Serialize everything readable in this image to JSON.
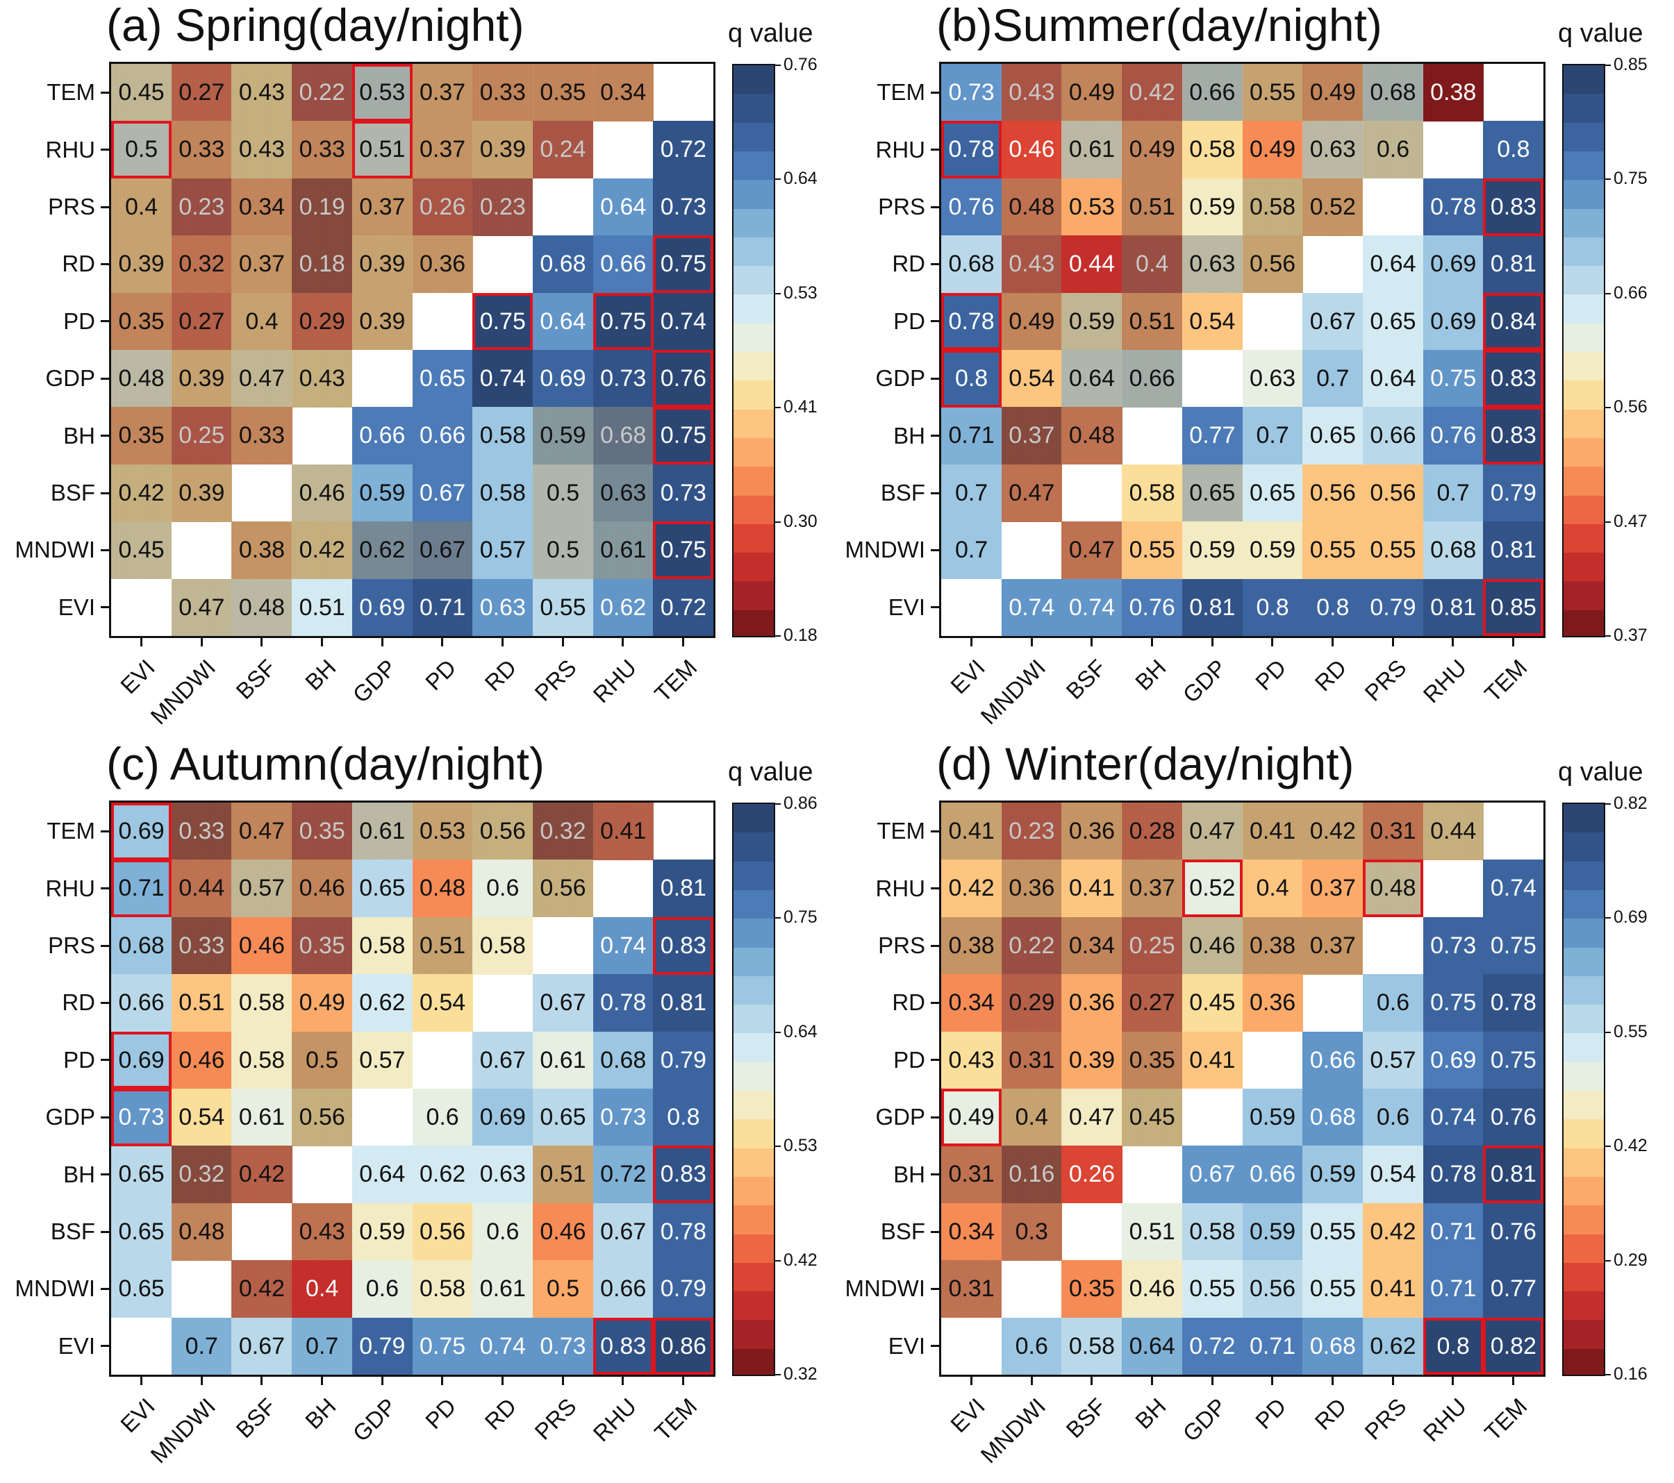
{
  "chart_data": [
    {
      "type": "heatmap",
      "title": "(a) Spring(day/night)",
      "colorbar_label": "q value",
      "rows": [
        "TEM",
        "RHU",
        "PRS",
        "RD",
        "PD",
        "GDP",
        "BH",
        "BSF",
        "MNDWI",
        "EVI"
      ],
      "columns": [
        "EVI",
        "MNDWI",
        "BSF",
        "BH",
        "GDP",
        "PD",
        "RD",
        "PRS",
        "RHU",
        "TEM"
      ],
      "matrix": [
        [
          0.45,
          0.27,
          0.43,
          0.22,
          0.53,
          0.37,
          0.33,
          0.35,
          0.34,
          null
        ],
        [
          0.5,
          0.33,
          0.43,
          0.33,
          0.51,
          0.37,
          0.39,
          0.24,
          null,
          0.72
        ],
        [
          0.4,
          0.23,
          0.34,
          0.19,
          0.37,
          0.26,
          0.23,
          null,
          0.64,
          0.73
        ],
        [
          0.39,
          0.32,
          0.37,
          0.18,
          0.39,
          0.36,
          null,
          0.68,
          0.66,
          0.75
        ],
        [
          0.35,
          0.27,
          0.4,
          0.29,
          0.39,
          null,
          0.75,
          0.64,
          0.75,
          0.74
        ],
        [
          0.48,
          0.39,
          0.47,
          0.43,
          null,
          0.65,
          0.74,
          0.69,
          0.73,
          0.76
        ],
        [
          0.35,
          0.25,
          0.33,
          null,
          0.66,
          0.66,
          0.58,
          0.59,
          0.68,
          0.75
        ],
        [
          0.42,
          0.39,
          null,
          0.46,
          0.59,
          0.67,
          0.58,
          0.5,
          0.63,
          0.73
        ],
        [
          0.45,
          null,
          0.38,
          0.42,
          0.62,
          0.67,
          0.57,
          0.5,
          0.61,
          0.75
        ],
        [
          null,
          0.47,
          0.48,
          0.51,
          0.69,
          0.71,
          0.63,
          0.55,
          0.62,
          0.72
        ]
      ],
      "shaded": [
        "111111111.",
        "11111111.0",
        "1111111.00",
        "111111.000",
        "11111.0000",
        "1111.00000",
        "111.000110",
        "11.1000110",
        "1.11110110",
        ".110000000"
      ],
      "highlighted": [
        [
          0,
          4
        ],
        [
          1,
          0
        ],
        [
          1,
          4
        ],
        [
          3,
          9
        ],
        [
          4,
          6
        ],
        [
          4,
          8
        ],
        [
          5,
          9
        ],
        [
          6,
          9
        ],
        [
          8,
          9
        ]
      ],
      "colorbar_range": [
        0.18,
        0.76
      ],
      "colorbar_ticks": [
        "0.76",
        "0.64",
        "0.53",
        "0.41",
        "0.30",
        "0.18"
      ]
    },
    {
      "type": "heatmap",
      "title": "(b)Summer(day/night)",
      "colorbar_label": "q value",
      "rows": [
        "TEM",
        "RHU",
        "PRS",
        "RD",
        "PD",
        "GDP",
        "BH",
        "BSF",
        "MNDWI",
        "EVI"
      ],
      "columns": [
        "EVI",
        "MNDWI",
        "BSF",
        "BH",
        "GDP",
        "PD",
        "RD",
        "PRS",
        "RHU",
        "TEM"
      ],
      "matrix": [
        [
          0.73,
          0.43,
          0.49,
          0.42,
          0.66,
          0.55,
          0.49,
          0.68,
          0.38,
          null
        ],
        [
          0.78,
          0.46,
          0.61,
          0.49,
          0.58,
          0.49,
          0.63,
          0.6,
          null,
          0.8
        ],
        [
          0.76,
          0.48,
          0.53,
          0.51,
          0.59,
          0.58,
          0.52,
          null,
          0.78,
          0.83
        ],
        [
          0.68,
          0.43,
          0.44,
          0.4,
          0.63,
          0.56,
          null,
          0.64,
          0.69,
          0.81
        ],
        [
          0.78,
          0.49,
          0.59,
          0.51,
          0.54,
          null,
          0.67,
          0.65,
          0.69,
          0.84
        ],
        [
          0.8,
          0.54,
          0.64,
          0.66,
          null,
          0.63,
          0.7,
          0.64,
          0.75,
          0.83
        ],
        [
          0.71,
          0.37,
          0.48,
          null,
          0.77,
          0.7,
          0.65,
          0.66,
          0.76,
          0.83
        ],
        [
          0.7,
          0.47,
          null,
          0.58,
          0.65,
          0.65,
          0.56,
          0.56,
          0.7,
          0.79
        ],
        [
          0.7,
          null,
          0.47,
          0.55,
          0.59,
          0.59,
          0.55,
          0.55,
          0.68,
          0.81
        ],
        [
          null,
          0.74,
          0.74,
          0.76,
          0.81,
          0.8,
          0.8,
          0.79,
          0.81,
          0.85
        ]
      ],
      "shaded": [
        "011111110.",
        "00110011.0",
        "0101011.00",
        "010111.000",
        "01110.0000",
        "0011.00000",
        "011.000000",
        "01.0100000",
        "0.10000000",
        ".000000000"
      ],
      "highlighted": [
        [
          1,
          0
        ],
        [
          2,
          9
        ],
        [
          4,
          0
        ],
        [
          4,
          9
        ],
        [
          5,
          0
        ],
        [
          5,
          9
        ],
        [
          6,
          9
        ],
        [
          9,
          9
        ]
      ],
      "colorbar_range": [
        0.37,
        0.85
      ],
      "colorbar_ticks": [
        "0.85",
        "0.75",
        "0.66",
        "0.56",
        "0.47",
        "0.37"
      ]
    },
    {
      "type": "heatmap",
      "title": "(c) Autumn(day/night)",
      "colorbar_label": "q value",
      "rows": [
        "TEM",
        "RHU",
        "PRS",
        "RD",
        "PD",
        "GDP",
        "BH",
        "BSF",
        "MNDWI",
        "EVI"
      ],
      "columns": [
        "EVI",
        "MNDWI",
        "BSF",
        "BH",
        "GDP",
        "PD",
        "RD",
        "PRS",
        "RHU",
        "TEM"
      ],
      "matrix": [
        [
          0.69,
          0.33,
          0.47,
          0.35,
          0.61,
          0.53,
          0.56,
          0.32,
          0.41,
          null
        ],
        [
          0.71,
          0.44,
          0.57,
          0.46,
          0.65,
          0.48,
          0.6,
          0.56,
          null,
          0.81
        ],
        [
          0.68,
          0.33,
          0.46,
          0.35,
          0.58,
          0.51,
          0.58,
          null,
          0.74,
          0.83
        ],
        [
          0.66,
          0.51,
          0.58,
          0.49,
          0.62,
          0.54,
          null,
          0.67,
          0.78,
          0.81
        ],
        [
          0.69,
          0.46,
          0.58,
          0.5,
          0.57,
          null,
          0.67,
          0.61,
          0.68,
          0.79
        ],
        [
          0.73,
          0.54,
          0.61,
          0.56,
          null,
          0.6,
          0.69,
          0.65,
          0.73,
          0.8
        ],
        [
          0.65,
          0.32,
          0.42,
          null,
          0.64,
          0.62,
          0.63,
          0.51,
          0.72,
          0.83
        ],
        [
          0.65,
          0.48,
          null,
          0.43,
          0.59,
          0.56,
          0.6,
          0.46,
          0.67,
          0.78
        ],
        [
          0.65,
          null,
          0.42,
          0.4,
          0.6,
          0.58,
          0.61,
          0.5,
          0.66,
          0.79
        ],
        [
          null,
          0.7,
          0.67,
          0.7,
          0.79,
          0.75,
          0.74,
          0.73,
          0.83,
          0.86
        ]
      ],
      "shaded": [
        "011111111.",
        "01110001.0",
        "0101010.00",
        "000000.000",
        "00010.0000",
        "0001.00000",
        "011.000100",
        "01.1000000",
        "0.10000000",
        ".000000000"
      ],
      "highlighted": [
        [
          0,
          0
        ],
        [
          1,
          0
        ],
        [
          2,
          9
        ],
        [
          4,
          0
        ],
        [
          5,
          0
        ],
        [
          6,
          9
        ],
        [
          9,
          8
        ],
        [
          9,
          9
        ]
      ],
      "colorbar_range": [
        0.32,
        0.86
      ],
      "colorbar_ticks": [
        "0.86",
        "0.75",
        "0.64",
        "0.53",
        "0.42",
        "0.32"
      ]
    },
    {
      "type": "heatmap",
      "title": "(d) Winter(day/night)",
      "colorbar_label": "q value",
      "rows": [
        "TEM",
        "RHU",
        "PRS",
        "RD",
        "PD",
        "GDP",
        "BH",
        "BSF",
        "MNDWI",
        "EVI"
      ],
      "columns": [
        "EVI",
        "MNDWI",
        "BSF",
        "BH",
        "GDP",
        "PD",
        "RD",
        "PRS",
        "RHU",
        "TEM"
      ],
      "matrix": [
        [
          0.41,
          0.23,
          0.36,
          0.28,
          0.47,
          0.41,
          0.42,
          0.31,
          0.44,
          null
        ],
        [
          0.42,
          0.36,
          0.41,
          0.37,
          0.52,
          0.4,
          0.37,
          0.48,
          null,
          0.74
        ],
        [
          0.38,
          0.22,
          0.34,
          0.25,
          0.46,
          0.38,
          0.37,
          null,
          0.73,
          0.75
        ],
        [
          0.34,
          0.29,
          0.36,
          0.27,
          0.45,
          0.36,
          null,
          0.6,
          0.75,
          0.78
        ],
        [
          0.43,
          0.31,
          0.39,
          0.35,
          0.41,
          null,
          0.66,
          0.57,
          0.69,
          0.75
        ],
        [
          0.49,
          0.4,
          0.47,
          0.45,
          null,
          0.59,
          0.68,
          0.6,
          0.74,
          0.76
        ],
        [
          0.31,
          0.16,
          0.26,
          null,
          0.67,
          0.66,
          0.59,
          0.54,
          0.78,
          0.81
        ],
        [
          0.34,
          0.3,
          null,
          0.51,
          0.58,
          0.59,
          0.55,
          0.42,
          0.71,
          0.76
        ],
        [
          0.31,
          null,
          0.35,
          0.46,
          0.55,
          0.56,
          0.55,
          0.41,
          0.71,
          0.77
        ],
        [
          null,
          0.6,
          0.58,
          0.64,
          0.72,
          0.71,
          0.68,
          0.62,
          0.8,
          0.82
        ]
      ],
      "shaded": [
        "111111111.",
        "01010001.0",
        "1111111.00",
        "010100.000",
        "01010.0000",
        "0101.00000",
        "110.000000",
        "01.0000000",
        "1.00000000",
        ".000000000"
      ],
      "highlighted": [
        [
          1,
          4
        ],
        [
          1,
          7
        ],
        [
          5,
          0
        ],
        [
          6,
          9
        ],
        [
          9,
          8
        ],
        [
          9,
          9
        ]
      ],
      "colorbar_range": [
        0.16,
        0.82
      ],
      "colorbar_ticks": [
        "0.82",
        "0.69",
        "0.55",
        "0.42",
        "0.29",
        "0.16"
      ]
    }
  ],
  "colormap": [
    "#7f1a1c",
    "#b3262a",
    "#d73a2e",
    "#ef6a45",
    "#f99a5c",
    "#fdc07a",
    "#fbe29e",
    "#eef0d8",
    "#d7ecf3",
    "#b3d6e8",
    "#8bbbdc",
    "#6497c9",
    "#4574b3",
    "#34578f",
    "#2b4673"
  ],
  "shade_color": "#8a7a58",
  "highlight_color": "#e0141c"
}
